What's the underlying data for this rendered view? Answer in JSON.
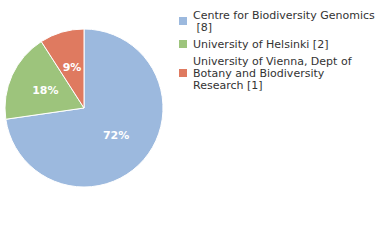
{
  "chart_data": {
    "type": "pie",
    "categories": [
      "Centre for Biodiversity Genomics [8]",
      "University of Helsinki [2]",
      "University of Vienna, Dept of Botany and Biodiversity Research [1]"
    ],
    "values": [
      72,
      18,
      9
    ],
    "value_labels": [
      "72%",
      "18%",
      "9%"
    ],
    "colors": [
      "#9cb9de",
      "#9dc47c",
      "#df7a60"
    ],
    "data_labels": true,
    "legend": "top-right"
  }
}
